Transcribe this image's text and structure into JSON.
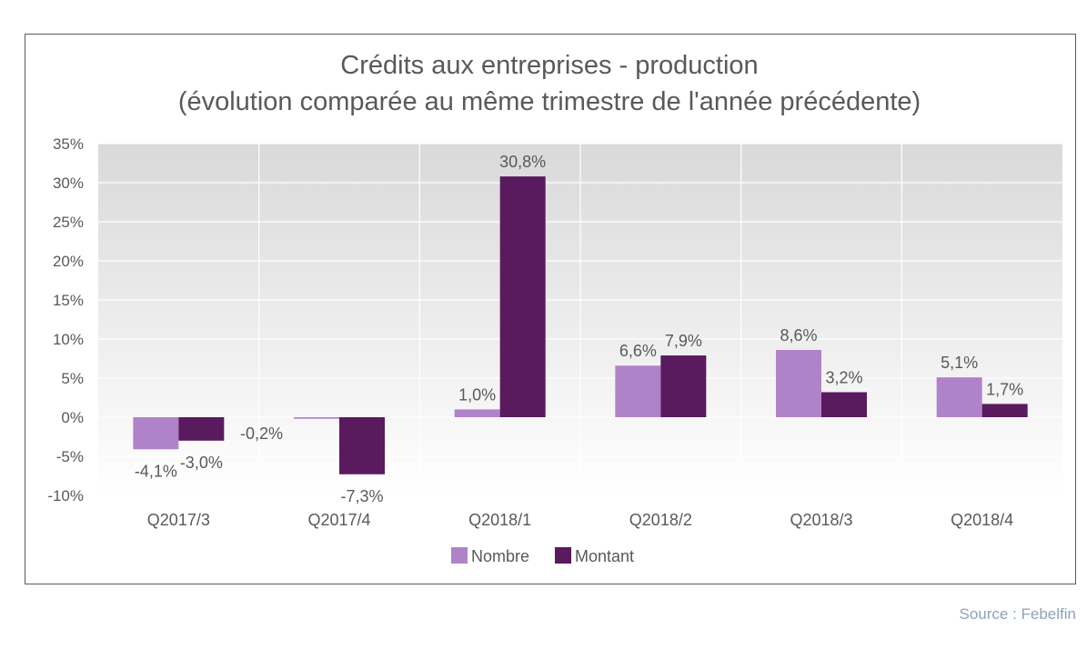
{
  "chart_data": {
    "type": "bar",
    "title": "Crédits aux entreprises - production",
    "subtitle": "(évolution comparée au même trimestre de l'année précédente)",
    "categories": [
      "Q2017/3",
      "Q2017/4",
      "Q2018/1",
      "Q2018/2",
      "Q2018/3",
      "Q2018/4"
    ],
    "series": [
      {
        "name": "Nombre",
        "color": "#b083c9",
        "values": [
          -4.1,
          -0.2,
          1.0,
          6.6,
          8.6,
          5.1
        ],
        "labels": [
          "-4,1%",
          "-0,2%",
          "1,0%",
          "6,6%",
          "8,6%",
          "5,1%"
        ]
      },
      {
        "name": "Montant",
        "color": "#5a1a5e",
        "values": [
          -3.0,
          -7.3,
          30.8,
          7.9,
          3.2,
          1.7
        ],
        "labels": [
          "-3,0%",
          "-7,3%",
          "30,8%",
          "7,9%",
          "3,2%",
          "1,7%"
        ]
      }
    ],
    "yticks": [
      35,
      30,
      25,
      20,
      15,
      10,
      5,
      0,
      -5,
      -10
    ],
    "ytick_labels": [
      "35%",
      "30%",
      "25%",
      "20%",
      "15%",
      "10%",
      "5%",
      "0%",
      "-5%",
      "-10%"
    ],
    "ylim": [
      -10,
      35
    ],
    "grid": true,
    "legend_position": "bottom-center"
  },
  "source": "Source : Febelfin"
}
